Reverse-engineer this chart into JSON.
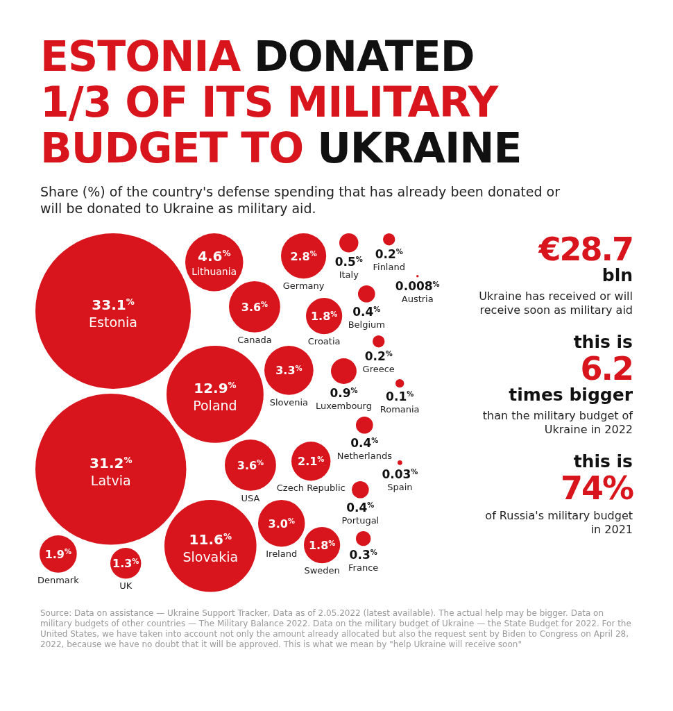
{
  "chart_data": {
    "type": "other",
    "title": "ESTONIA DONATED 1/3 OF ITS MILITARY BUDGET TO UKRAINE",
    "subtitle": "Share (%) of the country's defense spending that has already been donated or will be donated to Ukraine as military aid.",
    "categories": [
      "Estonia",
      "Latvia",
      "Poland",
      "Slovakia",
      "Lithuania",
      "Canada",
      "USA",
      "Slovenia",
      "Ireland",
      "Germany",
      "Czech Republic",
      "Denmark",
      "Croatia",
      "Sweden",
      "UK",
      "Luxembourg",
      "Italy",
      "Netherlands",
      "Belgium",
      "Portugal",
      "France",
      "Greece",
      "Finland",
      "Romania",
      "Spain",
      "Austria"
    ],
    "values": [
      33.1,
      31.2,
      12.9,
      11.6,
      4.6,
      3.6,
      3.6,
      3.3,
      3.0,
      2.8,
      2.1,
      1.9,
      1.8,
      1.8,
      1.3,
      0.9,
      0.5,
      0.4,
      0.4,
      0.4,
      0.3,
      0.2,
      0.2,
      0.1,
      0.03,
      0.008
    ],
    "value_labels": [
      "33.1%",
      "31.2%",
      "12.9%",
      "11.6%",
      "4.6%",
      "3.6%",
      "3.6%",
      "3.3%",
      "3.0%",
      "2.8%",
      "2.1%",
      "1.9%",
      "1.8%",
      "1.8%",
      "1.3%",
      "0.9%",
      "0.5%",
      "0.4%",
      "0.4%",
      "0.4%",
      "0.3%",
      "0.2%",
      "0.2%",
      "0.1%",
      "0.03%",
      "0.008%"
    ],
    "color": "#d8141c",
    "annotations": [
      "€28.7",
      "bln",
      "Ukraine has received or will receive soon as military aid",
      "this is",
      "6.2",
      "times bigger",
      "than the military budget of Ukraine in 2022",
      "this is",
      "74%",
      "of Russia's military budget in 2021",
      "Source: Data on assistance — Ukraine Support Tracker, Data as of 2.05.2022 (latest available). The actual help may be bigger. Data on military budgets of other countries — The Military Balance 2022. Data on the military budget of Ukraine — the State Budget for 2022. For the United States, we have taken into account not only the amount already allocated but also the request sent by Biden to Congress on April 28, 2022, because we have no doubt that it will be approved. This is what we mean by \"help Ukraine will receive soon\""
    ]
  }
}
